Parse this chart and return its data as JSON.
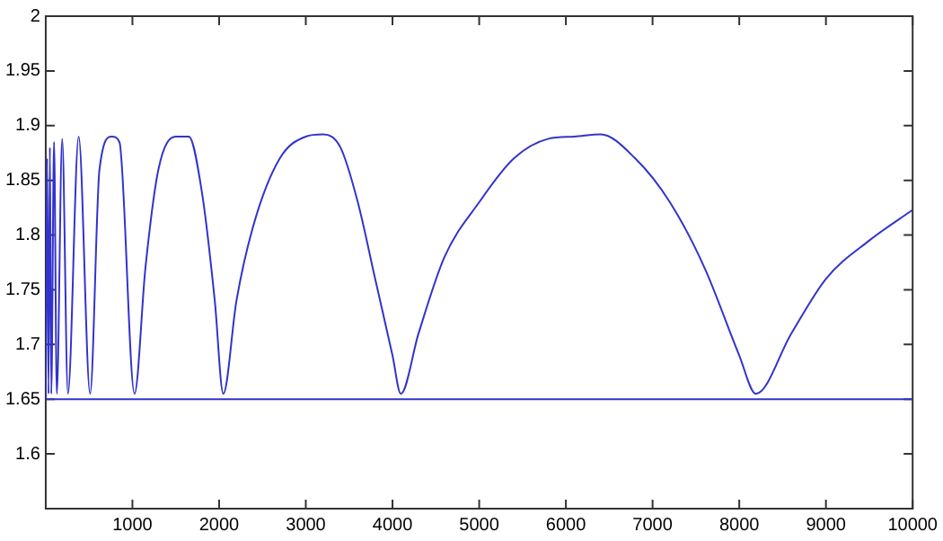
{
  "chart_data": {
    "type": "line",
    "xlim": [
      0,
      10000
    ],
    "ylim": [
      1.55,
      2
    ],
    "xticks": [
      1000,
      2000,
      3000,
      4000,
      5000,
      6000,
      7000,
      8000,
      9000,
      10000
    ],
    "yticks": [
      1.6,
      1.65,
      1.7,
      1.75,
      1.8,
      1.85,
      1.9,
      1.95,
      2
    ],
    "grid": false,
    "legend": false,
    "marker": "none",
    "line_style": "solid",
    "series": [
      {
        "color": "#3333cc",
        "x": [
          0,
          16,
          32,
          48,
          64,
          96,
          128,
          190,
          256,
          380,
          512,
          620,
          760,
          850,
          1024,
          1150,
          1300,
          1500,
          1650,
          1800,
          1950,
          2048,
          2200,
          2400,
          2700,
          3000,
          3200,
          3400,
          3600,
          3800,
          4000,
          4096,
          4300,
          4600,
          5000,
          5400,
          5800,
          6100,
          6400,
          6800,
          7200,
          7600,
          8000,
          8192,
          8600,
          9000,
          9500,
          10000
        ],
        "values": [
          1.65,
          1.87,
          1.655,
          1.88,
          1.655,
          1.885,
          1.655,
          1.888,
          1.655,
          1.89,
          1.655,
          1.86,
          1.89,
          1.885,
          1.655,
          1.77,
          1.86,
          1.89,
          1.89,
          1.84,
          1.74,
          1.655,
          1.74,
          1.81,
          1.87,
          1.89,
          1.892,
          1.88,
          1.83,
          1.76,
          1.69,
          1.655,
          1.71,
          1.78,
          1.83,
          1.87,
          1.888,
          1.89,
          1.892,
          1.87,
          1.83,
          1.77,
          1.69,
          1.655,
          1.71,
          1.76,
          1.795,
          1.823
        ]
      },
      {
        "color": "#3333cc",
        "x": [
          0,
          10000
        ],
        "values": [
          1.65,
          1.65
        ]
      }
    ]
  }
}
